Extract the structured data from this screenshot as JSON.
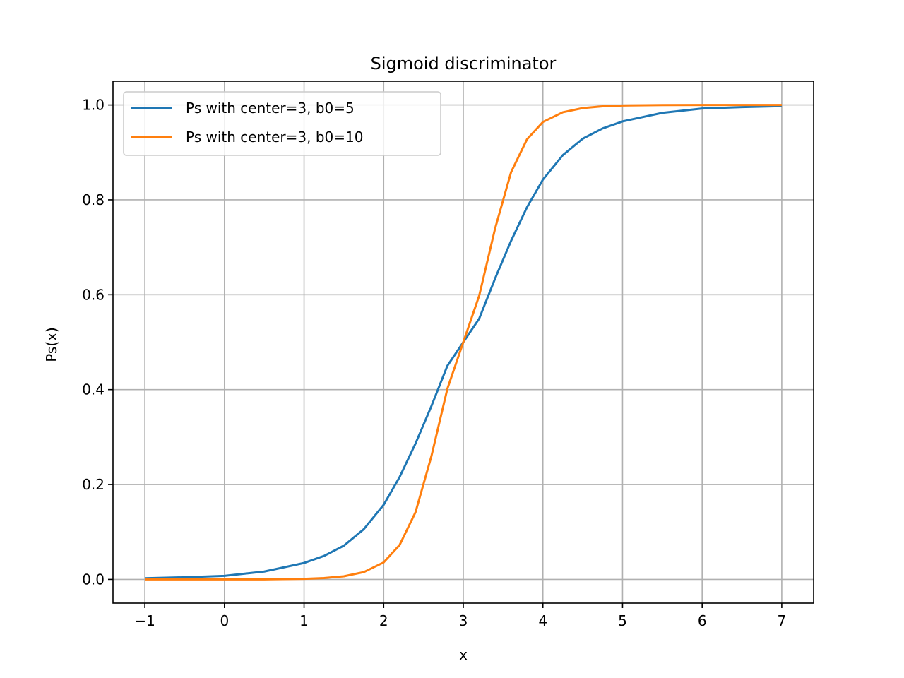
{
  "chart_data": {
    "type": "line",
    "title": "Sigmoid discriminator",
    "xlabel": "x",
    "ylabel": "Ps(x)",
    "xlim": [
      -1.4,
      7.4
    ],
    "ylim": [
      -0.05,
      1.05
    ],
    "xticks": [
      -1,
      0,
      1,
      2,
      3,
      4,
      5,
      6,
      7
    ],
    "xtick_labels": [
      "−1",
      "0",
      "1",
      "2",
      "3",
      "4",
      "5",
      "6",
      "7"
    ],
    "yticks": [
      0.0,
      0.2,
      0.4,
      0.6,
      0.8,
      1.0
    ],
    "ytick_labels": [
      "0.0",
      "0.2",
      "0.4",
      "0.6",
      "0.8",
      "1.0"
    ],
    "grid": true,
    "legend_position": "top-left",
    "x": [
      -1.0,
      -0.5,
      0.0,
      0.5,
      1.0,
      1.25,
      1.5,
      1.75,
      2.0,
      2.2,
      2.4,
      2.6,
      2.8,
      3.0,
      3.2,
      3.4,
      3.6,
      3.8,
      4.0,
      4.25,
      4.5,
      4.75,
      5.0,
      5.5,
      6.0,
      6.5,
      7.0
    ],
    "series": [
      {
        "name": "Ps with center=3, b0=5",
        "color": "#1f77b4",
        "values": [
          0.0025,
          0.0045,
          0.0075,
          0.0166,
          0.0347,
          0.0495,
          0.0711,
          0.1058,
          0.1573,
          0.2157,
          0.2865,
          0.3655,
          0.4502,
          0.5,
          0.5498,
          0.6345,
          0.7135,
          0.7843,
          0.8427,
          0.8942,
          0.9289,
          0.9505,
          0.9653,
          0.9834,
          0.9925,
          0.9955,
          0.9975
        ]
      },
      {
        "name": "Ps with center=3, b0=10",
        "color": "#ff7f0e",
        "values": [
          0.0,
          0.0,
          0.0,
          0.0001,
          0.0012,
          0.0028,
          0.0066,
          0.0154,
          0.0359,
          0.0725,
          0.1417,
          0.2601,
          0.4018,
          0.5,
          0.5982,
          0.7399,
          0.8583,
          0.9275,
          0.9641,
          0.9846,
          0.9934,
          0.9972,
          0.9988,
          0.9998,
          1.0,
          1.0,
          1.0
        ]
      }
    ]
  }
}
